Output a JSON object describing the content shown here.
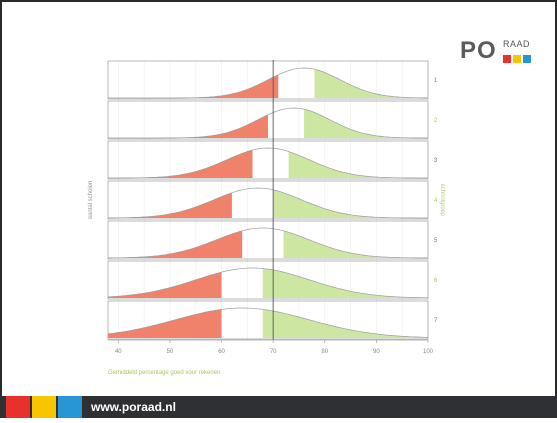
{
  "logo": {
    "text_main": "PO",
    "text_sub": "RAAD",
    "colors": [
      "#e8312a",
      "#f7c600",
      "#2896d3"
    ]
  },
  "footer": {
    "url": "www.poraad.nl",
    "colors": [
      "#e8312a",
      "#f7c600",
      "#2896d3"
    ],
    "background": "#2f3033"
  },
  "chart_data": {
    "type": "area",
    "xlabel": "Gemiddeld percentage goed voor rekenen",
    "ylabel": "aantal scholen",
    "right_label": "schoolgroep",
    "xlim": [
      38,
      100
    ],
    "xticks": [
      40,
      50,
      60,
      70,
      80,
      90,
      100
    ],
    "reference_line": 70,
    "colors": {
      "low": "#f0826c",
      "high": "#cde6a2",
      "curve": "#9e9e9e",
      "reference": "#555555"
    },
    "series": [
      {
        "name": "1",
        "mean": 76,
        "sd": 7,
        "low_cutoff": 71,
        "high_cutoff": 78
      },
      {
        "name": "2",
        "mean": 74,
        "sd": 7,
        "low_cutoff": 69,
        "high_cutoff": 76
      },
      {
        "name": "3",
        "mean": 69,
        "sd": 8,
        "low_cutoff": 66,
        "high_cutoff": 73
      },
      {
        "name": "4",
        "mean": 67,
        "sd": 8.5,
        "low_cutoff": 62,
        "high_cutoff": 70
      },
      {
        "name": "5",
        "mean": 68,
        "sd": 9,
        "low_cutoff": 64,
        "high_cutoff": 72
      },
      {
        "name": "6",
        "mean": 66,
        "sd": 11,
        "low_cutoff": 60,
        "high_cutoff": 68
      },
      {
        "name": "7",
        "mean": 64,
        "sd": 13,
        "low_cutoff": 60,
        "high_cutoff": 68
      }
    ]
  }
}
